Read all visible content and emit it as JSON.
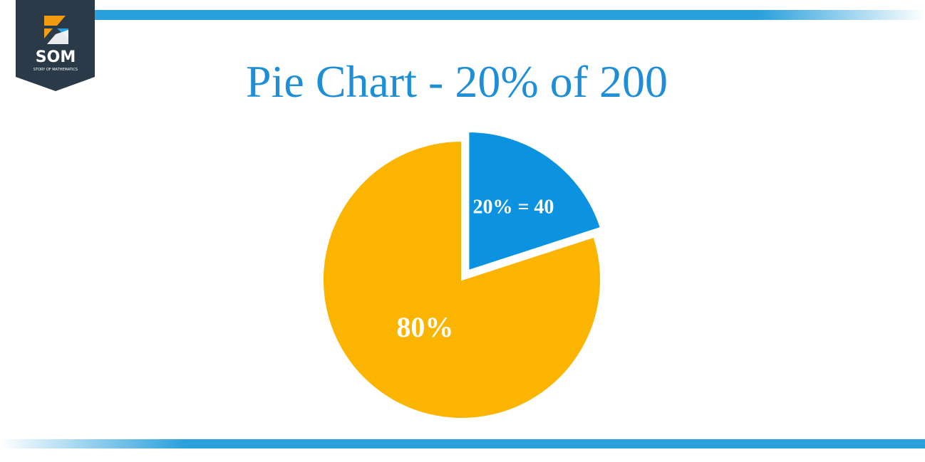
{
  "logo": {
    "text": "SOM",
    "subtext": "STORY OF MATHEMATICS"
  },
  "chart_data": {
    "type": "pie",
    "title": "Pie Chart - 20% of 200",
    "values": [
      20,
      80
    ],
    "value_labels": [
      "20% = 40",
      "80%"
    ],
    "colors": [
      "#0b93e1",
      "#fbb400"
    ]
  }
}
